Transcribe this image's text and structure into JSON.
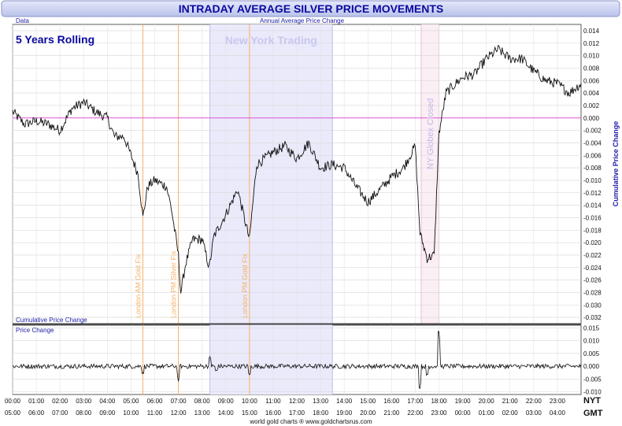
{
  "header": {
    "title": "INTRADAY AVERAGE SILVER PRICE MOVEMENTS",
    "data_label": "Data",
    "subtitle": "Annual Average Price Change"
  },
  "footer": {
    "credit": "world gold charts ® www.goldchartsrus.com"
  },
  "colors": {
    "title_bg": "#c9d0ee",
    "title_text": "#0a0aa0",
    "panel_label": "#1e1ea8",
    "ny_band": "#eaeafb",
    "globex_band": "#fbeef4",
    "fix_line": "#f5b26a",
    "zero_line": "#e055d0",
    "series": "#111111"
  },
  "chart_data": [
    {
      "type": "line",
      "panel": "main",
      "annotations": {
        "rolling": "5 Years Rolling",
        "ny_trading": "New York Trading",
        "globex_closed": "NY Globex Closed",
        "fixes": [
          {
            "label": "London AM Gold Fix",
            "x": 5.5
          },
          {
            "label": "London PM Silver Fix",
            "x": 7.0
          },
          {
            "label": "London PM Gold Fix",
            "x": 10.0
          }
        ]
      },
      "bands": {
        "ny_trading": [
          8.33,
          13.5
        ],
        "globex_closed": [
          17.25,
          18.0
        ]
      },
      "ylabel": "Cumulative Price Change",
      "bottom_label": "Cumulative Price Change",
      "ylim": [
        -0.033,
        0.015
      ],
      "ytick_labels": [
        "0.014",
        "0.012",
        "0.010",
        "0.008",
        "0.006",
        "0.004",
        "0.002",
        "0.000",
        "-0.002",
        "-0.004",
        "-0.006",
        "-0.008",
        "-0.010",
        "-0.012",
        "-0.014",
        "-0.016",
        "-0.018",
        "-0.020",
        "-0.022",
        "-0.024",
        "-0.026",
        "-0.028",
        "-0.030",
        "-0.032"
      ],
      "key_points": [
        [
          0.0,
          0.001
        ],
        [
          0.5,
          -0.001
        ],
        [
          1.0,
          -0.0005
        ],
        [
          1.5,
          -0.001
        ],
        [
          2.0,
          -0.002
        ],
        [
          2.5,
          0.0015
        ],
        [
          3.0,
          0.0025
        ],
        [
          3.5,
          0.001
        ],
        [
          4.0,
          0.0
        ],
        [
          4.3,
          -0.003
        ],
        [
          4.7,
          -0.003
        ],
        [
          5.0,
          -0.006
        ],
        [
          5.3,
          -0.009
        ],
        [
          5.5,
          -0.016
        ],
        [
          5.7,
          -0.011
        ],
        [
          6.0,
          -0.01
        ],
        [
          6.5,
          -0.011
        ],
        [
          6.7,
          -0.0145
        ],
        [
          7.0,
          -0.022
        ],
        [
          7.1,
          -0.028
        ],
        [
          7.3,
          -0.0235
        ],
        [
          7.6,
          -0.0195
        ],
        [
          8.0,
          -0.0195
        ],
        [
          8.3,
          -0.024
        ],
        [
          8.5,
          -0.019
        ],
        [
          9.0,
          -0.0155
        ],
        [
          9.5,
          -0.0115
        ],
        [
          10.0,
          -0.0195
        ],
        [
          10.3,
          -0.0075
        ],
        [
          11.0,
          -0.0055
        ],
        [
          11.5,
          -0.0045
        ],
        [
          12.0,
          -0.0065
        ],
        [
          12.5,
          -0.004
        ],
        [
          13.0,
          -0.008
        ],
        [
          13.5,
          -0.0075
        ],
        [
          14.0,
          -0.008
        ],
        [
          14.5,
          -0.011
        ],
        [
          15.0,
          -0.0135
        ],
        [
          15.5,
          -0.0115
        ],
        [
          16.0,
          -0.0095
        ],
        [
          16.5,
          -0.008
        ],
        [
          17.0,
          -0.0045
        ],
        [
          17.2,
          -0.0185
        ],
        [
          17.5,
          -0.0225
        ],
        [
          17.8,
          -0.022
        ],
        [
          18.0,
          -0.0025
        ],
        [
          18.3,
          0.004
        ],
        [
          18.7,
          0.0055
        ],
        [
          19.0,
          0.0065
        ],
        [
          19.5,
          0.007
        ],
        [
          20.0,
          0.0095
        ],
        [
          20.5,
          0.011
        ],
        [
          21.0,
          0.0095
        ],
        [
          21.5,
          0.0095
        ],
        [
          22.0,
          0.0075
        ],
        [
          22.5,
          0.006
        ],
        [
          23.0,
          0.0055
        ],
        [
          23.5,
          0.004
        ],
        [
          24.0,
          0.0055
        ]
      ]
    },
    {
      "type": "line",
      "panel": "lower",
      "ylabel": "Price Change",
      "ylim": [
        -0.011,
        0.016
      ],
      "ytick_labels": [
        "0.015",
        "0.010",
        "0.005",
        "0.000",
        "-0.005",
        "-0.010"
      ],
      "spikes": [
        [
          5.5,
          -0.004
        ],
        [
          7.0,
          -0.006
        ],
        [
          8.33,
          0.004
        ],
        [
          8.6,
          -0.002
        ],
        [
          10.0,
          -0.0035
        ],
        [
          17.2,
          -0.01
        ],
        [
          17.5,
          -0.004
        ],
        [
          18.0,
          0.0145
        ]
      ]
    }
  ],
  "x_axis": {
    "range": [
      0,
      24
    ],
    "nyt_label": "NYT",
    "gmt_label": "GMT",
    "nyt_ticks": [
      "00:00",
      "01:00",
      "02:00",
      "03:00",
      "04:00",
      "05:00",
      "06:00",
      "07:00",
      "08:00",
      "09:00",
      "10:00",
      "11:00",
      "12:00",
      "13:00",
      "14:00",
      "15:00",
      "16:00",
      "17:00",
      "18:00",
      "19:00",
      "20:00",
      "21:00",
      "22:00",
      "23:00"
    ],
    "gmt_ticks": [
      "05:00",
      "06:00",
      "07:00",
      "08:00",
      "09:00",
      "10:00",
      "11:00",
      "12:00",
      "13:00",
      "14:00",
      "15:00",
      "16:00",
      "17:00",
      "18:00",
      "19:00",
      "20:00",
      "21:00",
      "22:00",
      "23:00",
      "00:00",
      "01:00",
      "02:00",
      "03:00",
      "04:00"
    ]
  }
}
